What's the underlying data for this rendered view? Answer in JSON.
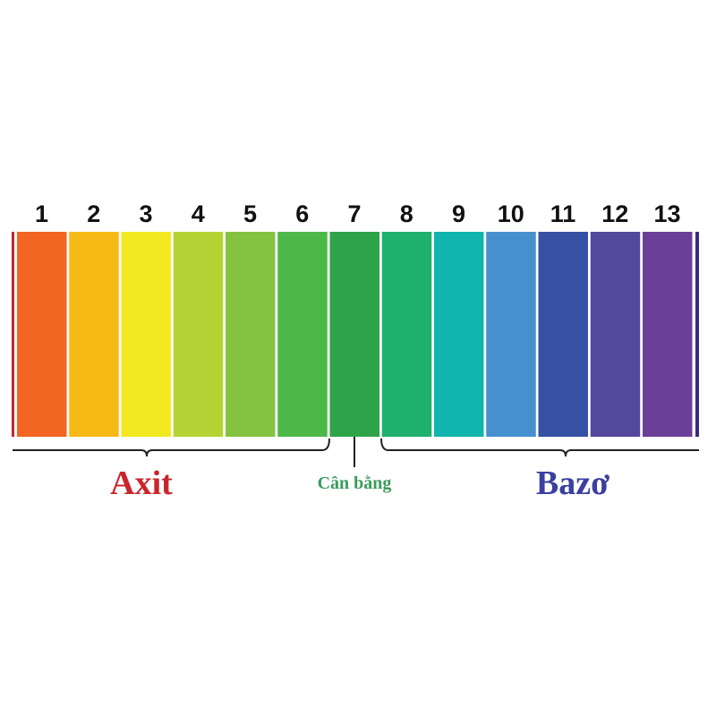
{
  "scale": {
    "levels": [
      {
        "value": "1",
        "color": "#f26522"
      },
      {
        "value": "2",
        "color": "#f7b916"
      },
      {
        "value": "3",
        "color": "#f2e920"
      },
      {
        "value": "4",
        "color": "#b5d334"
      },
      {
        "value": "5",
        "color": "#84c341"
      },
      {
        "value": "6",
        "color": "#4db848"
      },
      {
        "value": "7",
        "color": "#2fa34a"
      },
      {
        "value": "8",
        "color": "#1eb06e"
      },
      {
        "value": "9",
        "color": "#10b5ae"
      },
      {
        "value": "10",
        "color": "#4790cf"
      },
      {
        "value": "11",
        "color": "#3651a3"
      },
      {
        "value": "12",
        "color": "#53489c"
      },
      {
        "value": "13",
        "color": "#6a3f98"
      }
    ],
    "left_edge_color": "#c0282e",
    "right_edge_color": "#3c2a7e"
  },
  "groups": {
    "acid": {
      "label": "Axit",
      "color": "#c8262c"
    },
    "neutral": {
      "label": "Cân bằng",
      "color": "#3a9c5a"
    },
    "base": {
      "label": "Bazơ",
      "color": "#3a3fa0"
    }
  }
}
